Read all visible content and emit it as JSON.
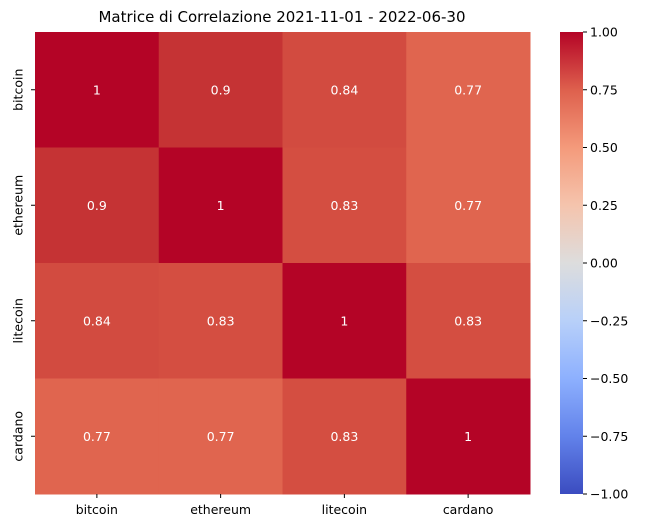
{
  "chart_data": {
    "type": "heatmap",
    "title": "Matrice di Correlazione 2021-11-01 - 2022-06-30",
    "x_categories": [
      "bitcoin",
      "ethereum",
      "litecoin",
      "cardano"
    ],
    "y_categories": [
      "bitcoin",
      "ethereum",
      "litecoin",
      "cardano"
    ],
    "values": [
      [
        1,
        0.9,
        0.84,
        0.77
      ],
      [
        0.9,
        1,
        0.83,
        0.77
      ],
      [
        0.84,
        0.83,
        1,
        0.83
      ],
      [
        0.77,
        0.77,
        0.83,
        1
      ]
    ],
    "annotations": [
      [
        "1",
        "0.9",
        "0.84",
        "0.77"
      ],
      [
        "0.9",
        "1",
        "0.83",
        "0.77"
      ],
      [
        "0.84",
        "0.83",
        "1",
        "0.83"
      ],
      [
        "0.77",
        "0.77",
        "0.83",
        "1"
      ]
    ],
    "colormap": "coolwarm",
    "colorbar": {
      "range": [
        -1.0,
        1.0
      ],
      "ticks": [
        1.0,
        0.75,
        0.5,
        0.25,
        0.0,
        -0.25,
        -0.5,
        -0.75,
        -1.0
      ],
      "tick_labels": [
        "1.00",
        "0.75",
        "0.50",
        "0.25",
        "0.00",
        "−0.25",
        "−0.50",
        "−0.75",
        "−1.00"
      ]
    },
    "cell_colors": {
      "1": "#b40426",
      "0.9": "#c53334",
      "0.84": "#d24b40",
      "0.83": "#d44e41",
      "0.77": "#e0654f"
    }
  }
}
